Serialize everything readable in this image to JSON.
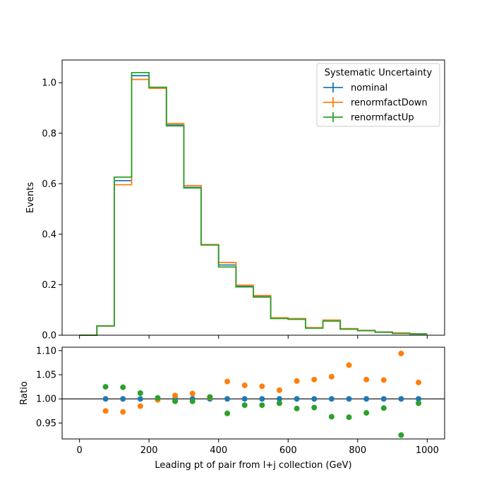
{
  "chart_data": [
    {
      "type": "line",
      "title": "",
      "xlabel": "",
      "ylabel": "Events",
      "xlim": [
        -50,
        1050
      ],
      "ylim": [
        0,
        1.09
      ],
      "xticks": [
        0,
        200,
        400,
        600,
        800,
        1000
      ],
      "yticks": [
        "0.0",
        "0.2",
        "0.4",
        "0.6",
        "0.8",
        "1.0"
      ],
      "bin_edges": [
        0,
        50,
        100,
        150,
        200,
        250,
        300,
        350,
        400,
        450,
        500,
        550,
        600,
        650,
        700,
        750,
        800,
        850,
        900,
        950,
        1000
      ],
      "legend": {
        "title": "Systematic Uncertainty",
        "location": "top-right"
      },
      "series": [
        {
          "name": "nominal",
          "color": "#1f77b4",
          "values": [
            0.0,
            0.037,
            0.612,
            1.028,
            0.98,
            0.832,
            0.585,
            0.358,
            0.278,
            0.193,
            0.153,
            0.067,
            0.064,
            0.029,
            0.057,
            0.025,
            0.018,
            0.012,
            0.008,
            0.005
          ]
        },
        {
          "name": "renormfactDown",
          "color": "#ff7f0e",
          "values": [
            0.0,
            0.036,
            0.596,
            1.013,
            0.978,
            0.838,
            0.592,
            0.359,
            0.288,
            0.198,
            0.157,
            0.069,
            0.066,
            0.03,
            0.06,
            0.026,
            0.019,
            0.012,
            0.009,
            0.005
          ]
        },
        {
          "name": "renormfactUp",
          "color": "#2ca02c",
          "values": [
            0.0,
            0.037,
            0.626,
            1.04,
            0.982,
            0.829,
            0.583,
            0.357,
            0.27,
            0.191,
            0.151,
            0.066,
            0.063,
            0.028,
            0.056,
            0.024,
            0.018,
            0.012,
            0.007,
            0.005
          ]
        }
      ]
    },
    {
      "type": "scatter",
      "title": "",
      "xlabel": "Leading pt of pair from l+j collection (GeV)",
      "ylabel": "Ratio",
      "xlim": [
        -50,
        1050
      ],
      "ylim": [
        0.917,
        1.107
      ],
      "xticks": [
        0,
        200,
        400,
        600,
        800,
        1000
      ],
      "yticks": [
        "0.95",
        "1.00",
        "1.05",
        "1.10"
      ],
      "reference_line": 1.0,
      "x": [
        75,
        125,
        175,
        225,
        275,
        325,
        375,
        425,
        475,
        525,
        575,
        625,
        675,
        725,
        775,
        825,
        875,
        925,
        975
      ],
      "series": [
        {
          "name": "nominal",
          "color": "#1f77b4",
          "values": [
            1.0,
            1.0,
            1.0,
            1.0,
            1.0,
            1.0,
            1.0,
            1.0,
            1.0,
            1.0,
            1.0,
            1.0,
            1.0,
            1.0,
            1.0,
            1.0,
            1.0,
            1.0,
            1.0
          ]
        },
        {
          "name": "renormfactDown",
          "color": "#ff7f0e",
          "values": [
            0.975,
            0.973,
            0.985,
            0.998,
            1.007,
            1.011,
            1.003,
            1.036,
            1.028,
            1.026,
            1.018,
            1.037,
            1.04,
            1.046,
            1.07,
            1.04,
            1.039,
            1.094,
            1.034
          ]
        },
        {
          "name": "renormfactUp",
          "color": "#2ca02c",
          "values": [
            1.025,
            1.024,
            1.012,
            1.002,
            0.995,
            0.995,
            1.004,
            0.97,
            0.987,
            0.987,
            0.991,
            0.98,
            0.982,
            0.963,
            0.962,
            0.971,
            0.981,
            0.925,
            0.991
          ]
        }
      ]
    }
  ]
}
